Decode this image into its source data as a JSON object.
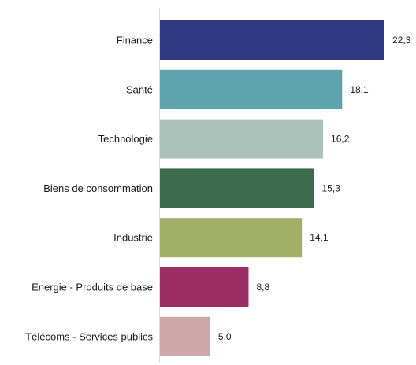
{
  "chart_data": {
    "type": "bar",
    "orientation": "horizontal",
    "categories": [
      "Finance",
      "Santé",
      "Technologie",
      "Biens de consommation",
      "Industrie",
      "Energie - Produits de base",
      "Télécoms - Services publics"
    ],
    "values": [
      22.3,
      18.1,
      16.2,
      15.3,
      14.1,
      8.8,
      5.0
    ],
    "value_labels": [
      "22,3",
      "18,1",
      "16,2",
      "15,3",
      "14,1",
      "8,8",
      "5,0"
    ],
    "colors": [
      "#2e3a84",
      "#5ea4ae",
      "#a9c3ba",
      "#3c6b4d",
      "#a1b066",
      "#9b2d62",
      "#cea8a8"
    ],
    "title": "",
    "xlabel": "",
    "ylabel": "",
    "xlim": [
      0,
      23
    ],
    "grid": false,
    "legend": "none"
  }
}
